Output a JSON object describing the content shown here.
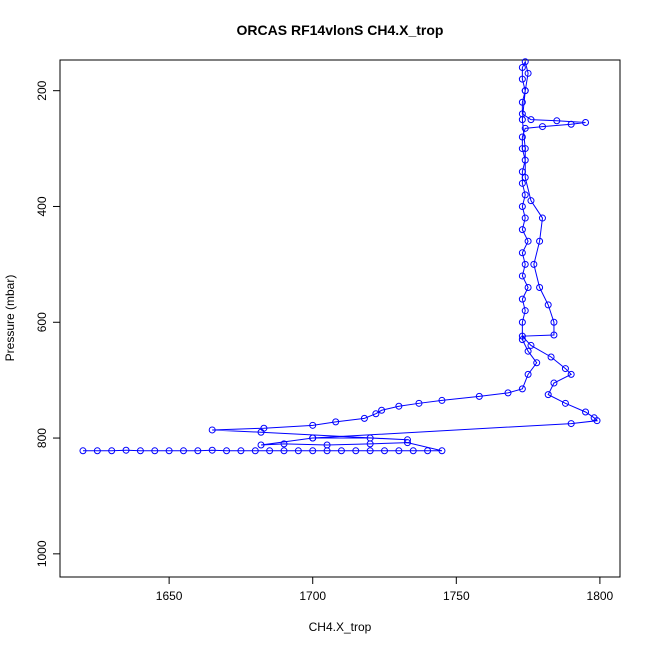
{
  "chart_data": {
    "type": "scatter",
    "line": true,
    "title": "ORCAS RF14vlonS CH4.X_trop",
    "x_label": "CH4.X_trop",
    "y_label": "Pressure (mbar)",
    "x": [
      1620,
      1625,
      1630,
      1635,
      1640,
      1645,
      1650,
      1655,
      1660,
      1665,
      1670,
      1675,
      1680,
      1685,
      1690,
      1695,
      1700,
      1705,
      1710,
      1715,
      1720,
      1725,
      1730,
      1735,
      1740,
      1745,
      1733,
      1720,
      1705,
      1690,
      1682,
      1700,
      1720,
      1733,
      1682,
      1665,
      1683,
      1700,
      1708,
      1718,
      1722,
      1724,
      1730,
      1737,
      1745,
      1758,
      1768,
      1773,
      1775,
      1778,
      1775,
      1773,
      1773,
      1774,
      1773,
      1775,
      1773,
      1774,
      1773,
      1775,
      1773,
      1774,
      1773,
      1774,
      1773,
      1773,
      1774,
      1773,
      1773,
      1774,
      1780,
      1790,
      1795,
      1785,
      1776,
      1773,
      1773,
      1774,
      1773,
      1773,
      1774,
      1775,
      1774,
      1773,
      1774,
      1774,
      1776,
      1780,
      1779,
      1777,
      1779,
      1782,
      1784,
      1784,
      1773,
      1776,
      1783,
      1788,
      1790,
      1784,
      1782,
      1788,
      1795,
      1798,
      1799,
      1790,
      1700
    ],
    "series": [
      {
        "name": "CH4.X_trop",
        "color": "#0000ff",
        "values": [
          822,
          822,
          822,
          821,
          822,
          822,
          822,
          822,
          822,
          821,
          822,
          822,
          822,
          822,
          822,
          822,
          822,
          822,
          822,
          822,
          822,
          822,
          822,
          822,
          822,
          822,
          808,
          810,
          812,
          810,
          812,
          800,
          800,
          803,
          790,
          786,
          783,
          778,
          772,
          766,
          758,
          752,
          745,
          740,
          735,
          728,
          722,
          715,
          690,
          670,
          650,
          630,
          600,
          580,
          560,
          540,
          520,
          500,
          480,
          460,
          440,
          420,
          400,
          380,
          360,
          340,
          320,
          300,
          280,
          265,
          262,
          258,
          255,
          252,
          250,
          240,
          220,
          200,
          180,
          160,
          150,
          170,
          200,
          250,
          300,
          350,
          390,
          420,
          460,
          500,
          540,
          570,
          600,
          622,
          624,
          640,
          660,
          680,
          690,
          705,
          725,
          740,
          755,
          765,
          770,
          775,
          800
        ]
      }
    ],
    "xlim": [
      1612,
      1807
    ],
    "xticks": [
      1650,
      1700,
      1750,
      1800
    ],
    "ylim": [
      1040,
      147
    ],
    "yticks": [
      200,
      400,
      600,
      800,
      1000
    ]
  }
}
